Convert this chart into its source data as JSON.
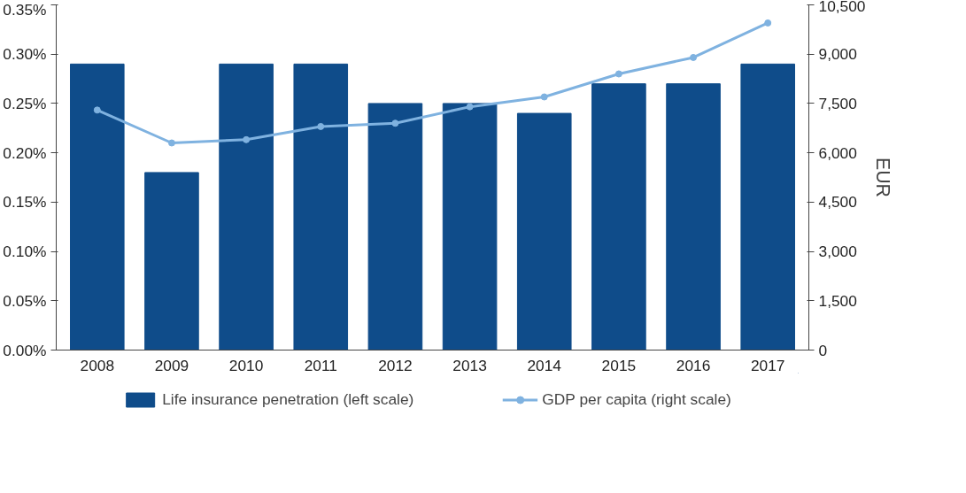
{
  "chart_data": {
    "type": "bar",
    "categories": [
      "2008",
      "2009",
      "2010",
      "2011",
      "2012",
      "2013",
      "2014",
      "2015",
      "2016",
      "2017"
    ],
    "y2label": "EUR",
    "series": [
      {
        "name": "Life insurance penetration (left scale)",
        "color": "#0f4c8a",
        "values": [
          0.29,
          0.18,
          0.29,
          0.29,
          0.25,
          0.25,
          0.24,
          0.27,
          0.27,
          0.29
        ]
      },
      {
        "name": "GDP per capita (right scale)",
        "type": "line",
        "axis": "y2",
        "color": "#7fb2e0",
        "marker": "circle",
        "values": [
          7300,
          6300,
          6400,
          6800,
          6900,
          7400,
          7700,
          8400,
          8900,
          9950
        ]
      }
    ],
    "ylim": [
      0,
      0.35
    ],
    "yticks": [
      {
        "value": 0,
        "label": "0.00%"
      },
      {
        "value": 0.05,
        "label": "0.05%"
      },
      {
        "value": 0.1,
        "label": "0.10%"
      },
      {
        "value": 0.15,
        "label": "0.15%"
      },
      {
        "value": 0.2,
        "label": "0.20%"
      },
      {
        "value": 0.25,
        "label": "0.25%"
      },
      {
        "value": 0.3,
        "label": "0.30%"
      },
      {
        "value": 0.35,
        "label": "0.35%"
      }
    ],
    "y2lim": [
      0,
      10500
    ],
    "y2ticks": [
      0,
      {
        "value": 1500,
        "label": "1,500"
      },
      {
        "value": 3000,
        "label": "3,000"
      },
      {
        "value": 4500,
        "label": "4,500"
      },
      {
        "value": 6000,
        "label": "6,000"
      },
      {
        "value": 7500,
        "label": "7,500"
      },
      {
        "value": 9000,
        "label": "9,000"
      },
      {
        "value": 10500,
        "label": "10,500"
      }
    ],
    "grid": false,
    "legend": "bottom"
  }
}
